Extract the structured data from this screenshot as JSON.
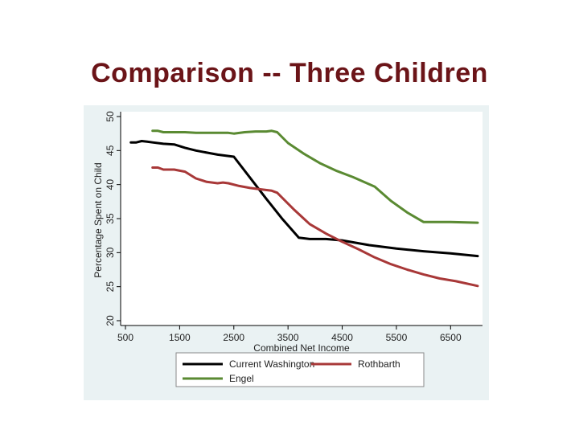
{
  "slide": {
    "title": "Comparison -- Three Children"
  },
  "chart_data": {
    "type": "line",
    "title": "",
    "xlabel": "Combined Net Income",
    "ylabel": "Percentage Spent on Child",
    "xlim": [
      500,
      7000
    ],
    "ylim": [
      20,
      50
    ],
    "x_ticks": [
      500,
      1500,
      2500,
      3500,
      4500,
      5500,
      6500
    ],
    "y_ticks": [
      20,
      25,
      30,
      35,
      40,
      45,
      50
    ],
    "grid": false,
    "legend_position": "bottom",
    "series": [
      {
        "name": "Current Washington",
        "color": "#000000",
        "points": [
          [
            600,
            46.2
          ],
          [
            700,
            46.2
          ],
          [
            800,
            46.4
          ],
          [
            900,
            46.3
          ],
          [
            1000,
            46.2
          ],
          [
            1200,
            46.0
          ],
          [
            1400,
            45.9
          ],
          [
            1600,
            45.4
          ],
          [
            1800,
            45.0
          ],
          [
            2000,
            44.7
          ],
          [
            2200,
            44.4
          ],
          [
            2400,
            44.2
          ],
          [
            2500,
            44.1
          ],
          [
            2800,
            41.0
          ],
          [
            3100,
            37.9
          ],
          [
            3400,
            34.9
          ],
          [
            3700,
            32.2
          ],
          [
            3900,
            32.0
          ],
          [
            4200,
            32.0
          ],
          [
            4500,
            31.8
          ],
          [
            5000,
            31.1
          ],
          [
            5500,
            30.6
          ],
          [
            6000,
            30.2
          ],
          [
            6500,
            29.9
          ],
          [
            7000,
            29.5
          ]
        ]
      },
      {
        "name": "Engel",
        "color": "#5a8a32",
        "points": [
          [
            1000,
            47.9
          ],
          [
            1100,
            47.9
          ],
          [
            1200,
            47.7
          ],
          [
            1400,
            47.7
          ],
          [
            1600,
            47.7
          ],
          [
            1800,
            47.6
          ],
          [
            2000,
            47.6
          ],
          [
            2200,
            47.6
          ],
          [
            2400,
            47.6
          ],
          [
            2500,
            47.5
          ],
          [
            2700,
            47.7
          ],
          [
            2900,
            47.8
          ],
          [
            3100,
            47.8
          ],
          [
            3200,
            47.9
          ],
          [
            3300,
            47.7
          ],
          [
            3500,
            46.1
          ],
          [
            3800,
            44.5
          ],
          [
            4100,
            43.1
          ],
          [
            4400,
            42.0
          ],
          [
            4700,
            41.1
          ],
          [
            5100,
            39.7
          ],
          [
            5400,
            37.6
          ],
          [
            5700,
            35.9
          ],
          [
            6000,
            34.5
          ],
          [
            6500,
            34.5
          ],
          [
            7000,
            34.4
          ]
        ]
      },
      {
        "name": "Rothbarth",
        "color": "#a83838",
        "points": [
          [
            1000,
            42.5
          ],
          [
            1100,
            42.5
          ],
          [
            1200,
            42.2
          ],
          [
            1400,
            42.2
          ],
          [
            1600,
            41.9
          ],
          [
            1800,
            40.9
          ],
          [
            2000,
            40.4
          ],
          [
            2200,
            40.2
          ],
          [
            2300,
            40.3
          ],
          [
            2400,
            40.2
          ],
          [
            2600,
            39.8
          ],
          [
            2800,
            39.5
          ],
          [
            3000,
            39.3
          ],
          [
            3200,
            39.1
          ],
          [
            3300,
            38.8
          ],
          [
            3600,
            36.4
          ],
          [
            3900,
            34.2
          ],
          [
            4200,
            32.8
          ],
          [
            4500,
            31.6
          ],
          [
            4800,
            30.5
          ],
          [
            5100,
            29.3
          ],
          [
            5400,
            28.3
          ],
          [
            5700,
            27.5
          ],
          [
            6000,
            26.8
          ],
          [
            6300,
            26.2
          ],
          [
            6600,
            25.8
          ],
          [
            7000,
            25.1
          ]
        ]
      }
    ]
  }
}
